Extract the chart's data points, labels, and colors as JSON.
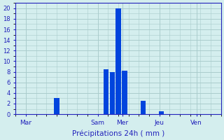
{
  "xlabel": "Précipitations 24h ( mm )",
  "bg_color": "#d4eeee",
  "bar_color": "#0044dd",
  "grid_color": "#aacccc",
  "axis_label_color": "#2222bb",
  "ylim": [
    0,
    21
  ],
  "yticks": [
    0,
    2,
    4,
    6,
    8,
    10,
    12,
    14,
    16,
    18,
    20
  ],
  "num_slots": 100,
  "day_tick_positions": [
    5,
    40,
    52,
    70,
    88
  ],
  "day_labels": [
    "Mar",
    "Sam",
    "Mer",
    "Jeu",
    "Ven"
  ],
  "bar_positions": [
    20,
    44,
    47,
    50,
    53,
    62,
    71
  ],
  "bar_heights": [
    3.0,
    8.5,
    8.0,
    20.0,
    8.2,
    2.5,
    0.5
  ],
  "bar_width": 2.5
}
